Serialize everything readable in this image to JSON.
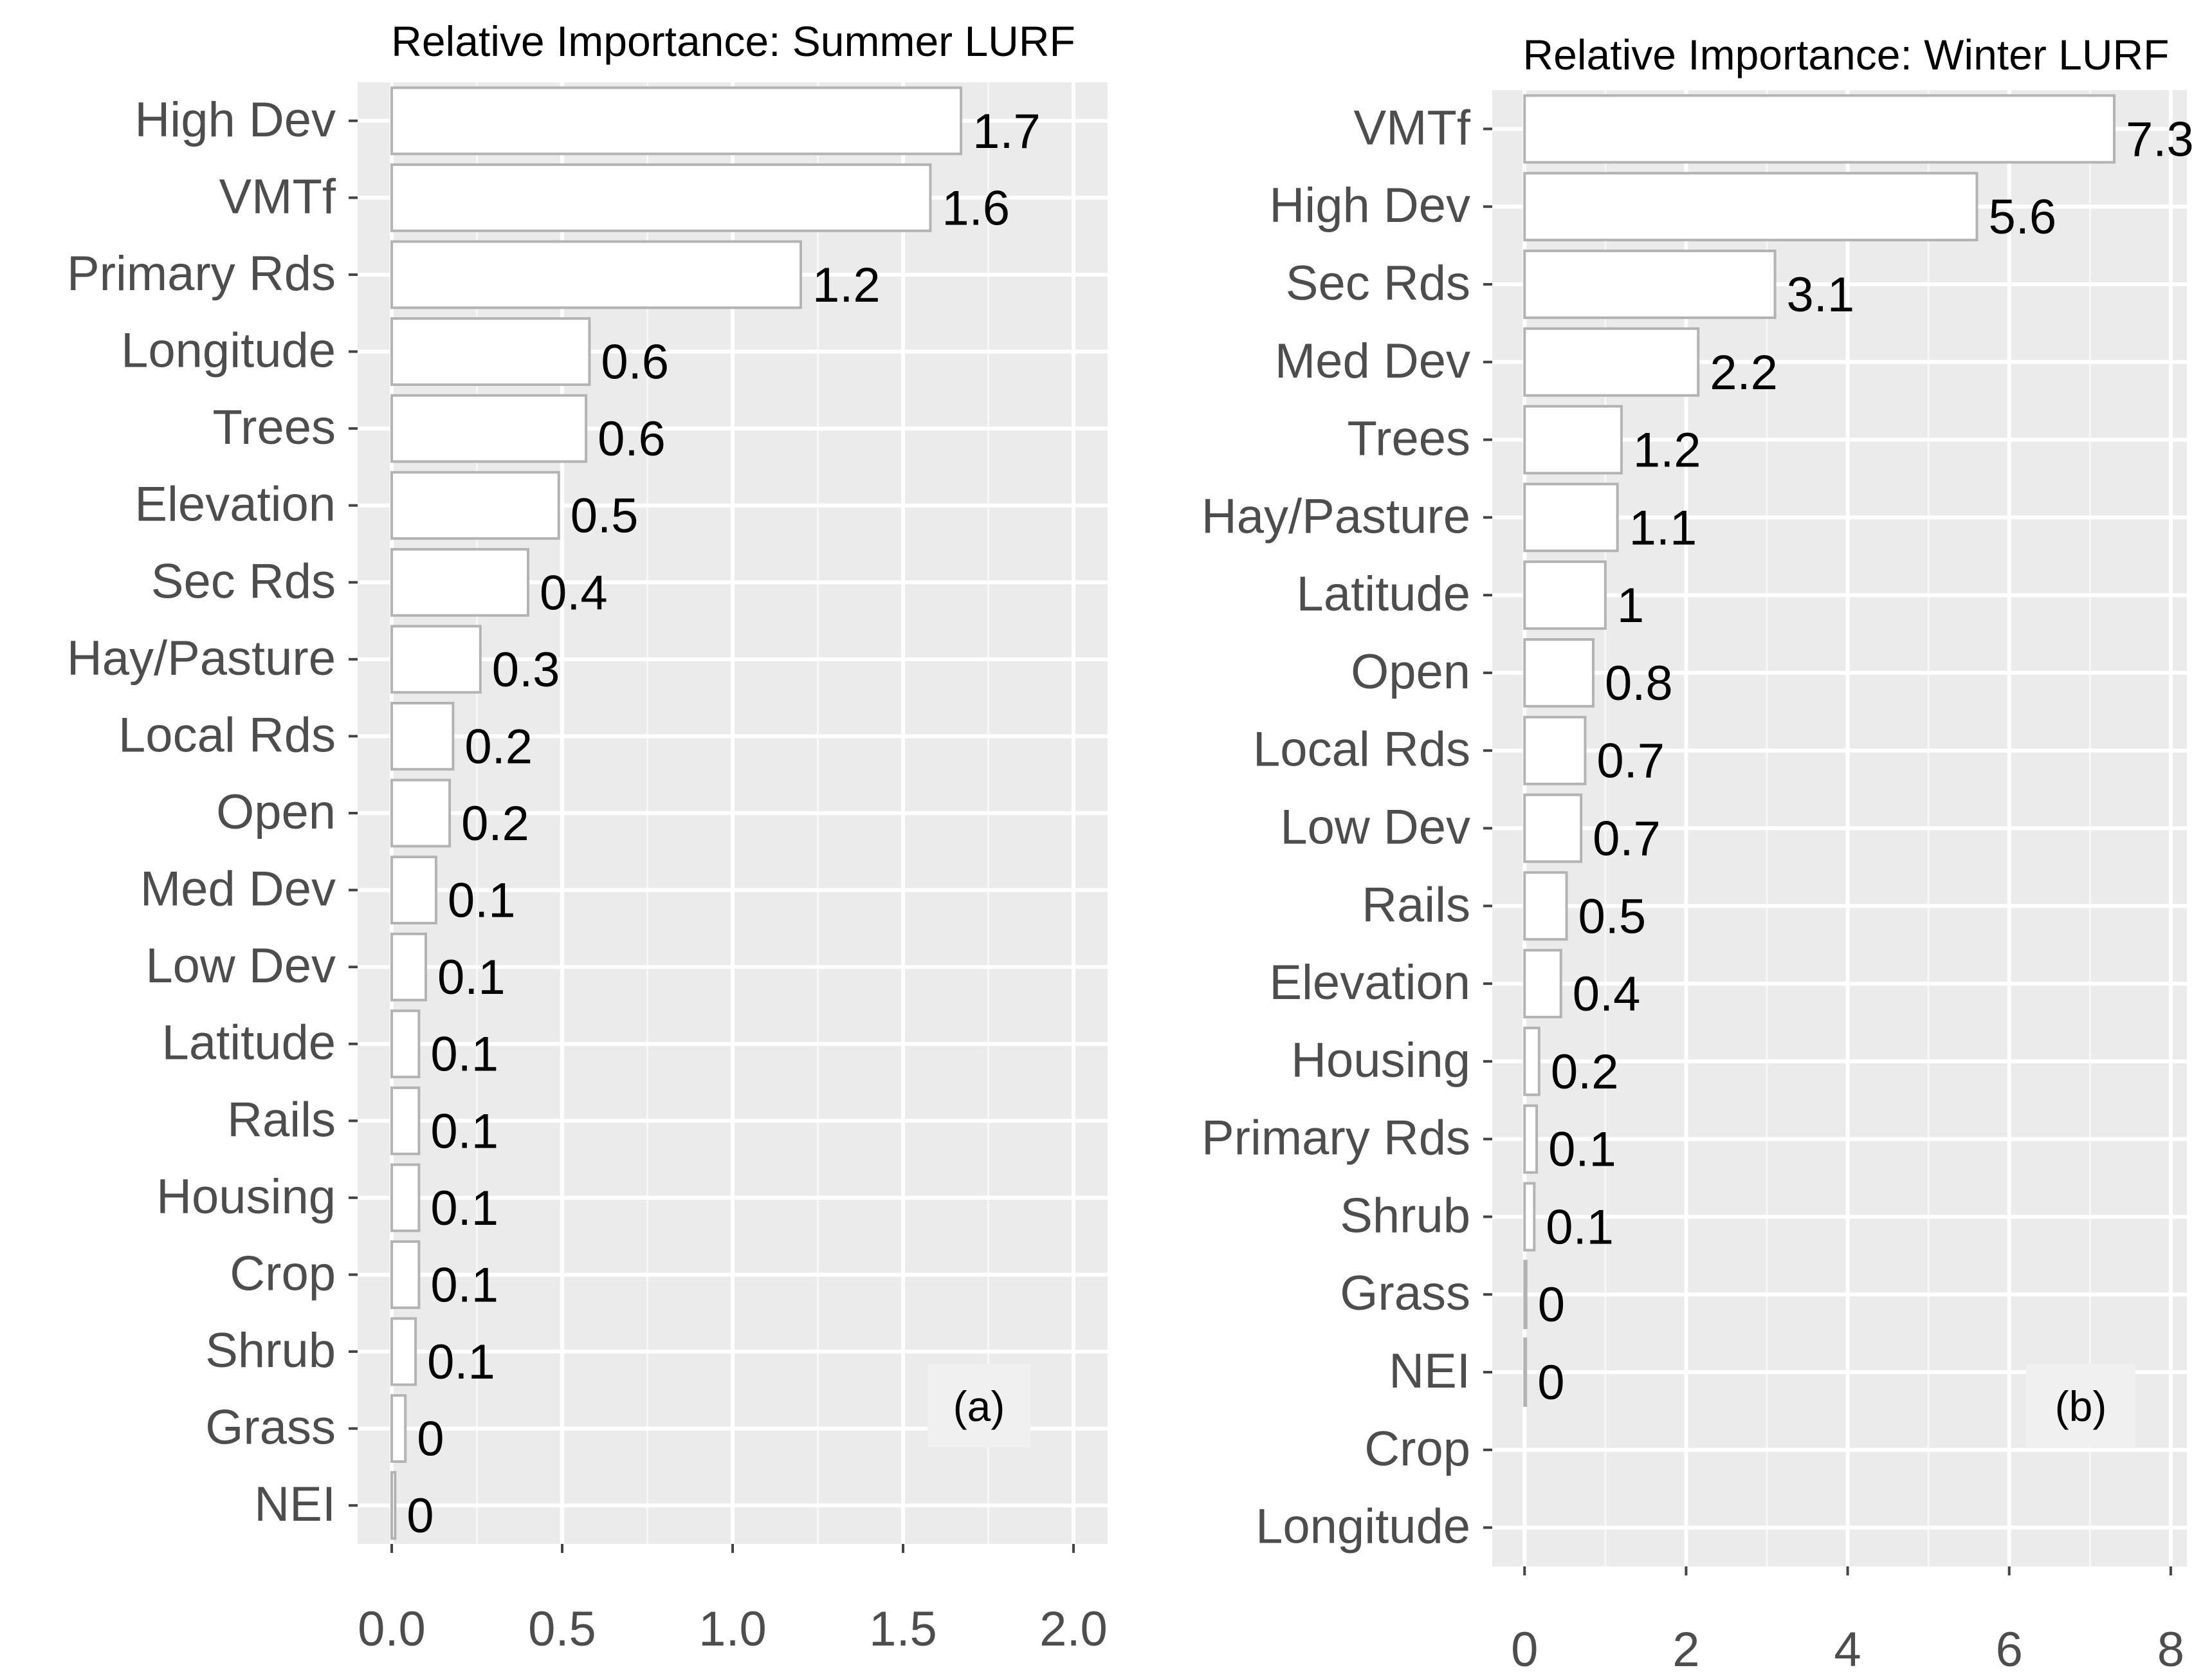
{
  "chart_data": [
    {
      "type": "bar",
      "orientation": "horizontal",
      "title": "Relative Importance: Summer LURF",
      "panel_label": "(a)",
      "categories": [
        "High Dev",
        "VMTf",
        "Primary Rds",
        "Longitude",
        "Trees",
        "Elevation",
        "Sec Rds",
        "Hay/Pasture",
        "Local Rds",
        "Open",
        "Med Dev",
        "Low Dev",
        "Latitude",
        "Rails",
        "Housing",
        "Crop",
        "Shrub",
        "Grass",
        "NEI"
      ],
      "values": [
        1.67,
        1.58,
        1.2,
        0.58,
        0.57,
        0.49,
        0.4,
        0.26,
        0.18,
        0.17,
        0.13,
        0.1,
        0.08,
        0.08,
        0.08,
        0.08,
        0.07,
        0.04,
        0.01
      ],
      "value_labels": [
        "1.7",
        "1.6",
        "1.2",
        "0.6",
        "0.6",
        "0.5",
        "0.4",
        "0.3",
        "0.2",
        "0.2",
        "0.1",
        "0.1",
        "0.1",
        "0.1",
        "0.1",
        "0.1",
        "0.1",
        "0",
        "0"
      ],
      "xticks": [
        0,
        0.5,
        1,
        1.5,
        2
      ],
      "xtick_labels": [
        "0.0",
        "0.5",
        "1.0",
        "1.5",
        "2.0"
      ],
      "xlim": [
        -0.1,
        2.1
      ],
      "xlabel": "",
      "ylabel": "",
      "grid": true
    },
    {
      "type": "bar",
      "orientation": "horizontal",
      "title": "Relative Importance: Winter LURF",
      "panel_label": "(b)",
      "categories": [
        "VMTf",
        "High Dev",
        "Sec Rds",
        "Med Dev",
        "Trees",
        "Hay/Pasture",
        "Latitude",
        "Open",
        "Local Rds",
        "Low Dev",
        "Rails",
        "Elevation",
        "Housing",
        "Primary Rds",
        "Shrub",
        "Grass",
        "NEI",
        "Crop",
        "Longitude"
      ],
      "values": [
        7.3,
        5.6,
        3.1,
        2.15,
        1.2,
        1.15,
        1.0,
        0.85,
        0.75,
        0.7,
        0.52,
        0.45,
        0.18,
        0.15,
        0.12,
        0.02,
        0.01,
        0,
        0
      ],
      "value_labels": [
        "7.3",
        "5.6",
        "3.1",
        "2.2",
        "1.2",
        "1.1",
        "1",
        "0.8",
        "0.7",
        "0.7",
        "0.5",
        "0.4",
        "0.2",
        "0.1",
        "0.1",
        "0",
        "0",
        "",
        ""
      ],
      "xticks": [
        0,
        2,
        4,
        6,
        8
      ],
      "xtick_labels": [
        "0",
        "2",
        "4",
        "6",
        "8"
      ],
      "xlim": [
        -0.4,
        8.2
      ],
      "xlabel": "",
      "ylabel": "",
      "grid": true
    }
  ]
}
